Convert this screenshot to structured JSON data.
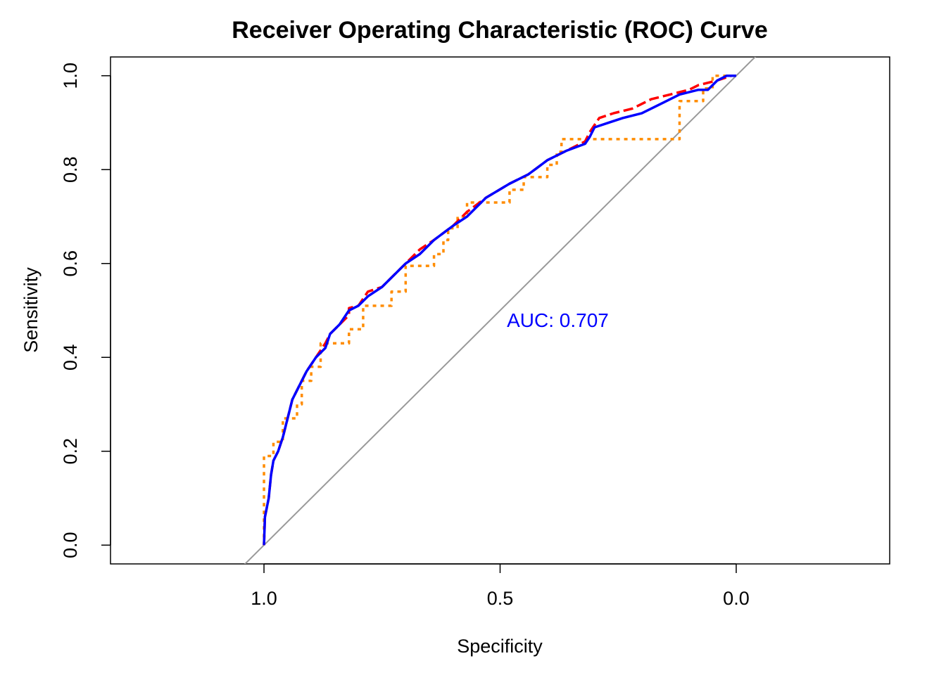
{
  "chart_data": {
    "type": "line",
    "title": "Receiver Operating Characteristic (ROC) Curve",
    "xlabel": "Specificity",
    "ylabel": "Sensitivity",
    "x_reversed": true,
    "xlim": [
      1.325,
      -0.325
    ],
    "ylim": [
      -0.04,
      1.04
    ],
    "xticks": [
      1.0,
      0.5,
      0.0
    ],
    "xtick_labels": [
      "1.0",
      "0.5",
      "0.0"
    ],
    "yticks": [
      0.0,
      0.2,
      0.4,
      0.6,
      0.8,
      1.0
    ],
    "ytick_labels": [
      "0.0",
      "0.2",
      "0.4",
      "0.6",
      "0.8",
      "1.0"
    ],
    "grid": false,
    "annotation": {
      "text": "AUC: 0.707",
      "x": 0.5,
      "y": 0.48,
      "color": "#0000ff"
    },
    "reference_line": {
      "color": "#999999",
      "points": [
        [
          1.0,
          0.0
        ],
        [
          0.0,
          1.0
        ]
      ]
    },
    "series": [
      {
        "color": "#ff8c00",
        "style": "dotted",
        "points": [
          [
            1.0,
            0.0
          ],
          [
            1.0,
            0.19
          ],
          [
            0.98,
            0.19
          ],
          [
            0.98,
            0.22
          ],
          [
            0.96,
            0.22
          ],
          [
            0.96,
            0.27
          ],
          [
            0.93,
            0.27
          ],
          [
            0.93,
            0.3
          ],
          [
            0.92,
            0.3
          ],
          [
            0.92,
            0.35
          ],
          [
            0.9,
            0.35
          ],
          [
            0.9,
            0.38
          ],
          [
            0.88,
            0.38
          ],
          [
            0.88,
            0.43
          ],
          [
            0.82,
            0.43
          ],
          [
            0.82,
            0.46
          ],
          [
            0.79,
            0.46
          ],
          [
            0.79,
            0.51
          ],
          [
            0.73,
            0.51
          ],
          [
            0.73,
            0.54
          ],
          [
            0.7,
            0.54
          ],
          [
            0.7,
            0.595
          ],
          [
            0.64,
            0.595
          ],
          [
            0.64,
            0.62
          ],
          [
            0.62,
            0.62
          ],
          [
            0.62,
            0.65
          ],
          [
            0.61,
            0.65
          ],
          [
            0.61,
            0.675
          ],
          [
            0.59,
            0.675
          ],
          [
            0.59,
            0.7
          ],
          [
            0.57,
            0.7
          ],
          [
            0.57,
            0.73
          ],
          [
            0.48,
            0.73
          ],
          [
            0.48,
            0.757
          ],
          [
            0.45,
            0.757
          ],
          [
            0.45,
            0.784
          ],
          [
            0.4,
            0.784
          ],
          [
            0.4,
            0.81
          ],
          [
            0.38,
            0.81
          ],
          [
            0.38,
            0.838
          ],
          [
            0.37,
            0.838
          ],
          [
            0.37,
            0.865
          ],
          [
            0.12,
            0.865
          ],
          [
            0.12,
            0.892
          ],
          [
            0.12,
            0.919
          ],
          [
            0.12,
            0.946
          ],
          [
            0.07,
            0.946
          ],
          [
            0.07,
            0.973
          ],
          [
            0.05,
            0.973
          ],
          [
            0.05,
            1.0
          ],
          [
            0.0,
            1.0
          ]
        ]
      },
      {
        "color": "#ff0000",
        "style": "dashed",
        "points": [
          [
            1.0,
            0.0
          ],
          [
            0.998,
            0.06
          ],
          [
            0.99,
            0.1
          ],
          [
            0.985,
            0.15
          ],
          [
            0.98,
            0.18
          ],
          [
            0.97,
            0.2
          ],
          [
            0.96,
            0.23
          ],
          [
            0.95,
            0.27
          ],
          [
            0.94,
            0.31
          ],
          [
            0.925,
            0.34
          ],
          [
            0.91,
            0.37
          ],
          [
            0.89,
            0.4
          ],
          [
            0.87,
            0.43
          ],
          [
            0.86,
            0.45
          ],
          [
            0.84,
            0.47
          ],
          [
            0.82,
            0.49
          ],
          [
            0.82,
            0.505
          ],
          [
            0.8,
            0.51
          ],
          [
            0.78,
            0.54
          ],
          [
            0.75,
            0.55
          ],
          [
            0.72,
            0.58
          ],
          [
            0.7,
            0.6
          ],
          [
            0.67,
            0.63
          ],
          [
            0.64,
            0.65
          ],
          [
            0.6,
            0.68
          ],
          [
            0.57,
            0.71
          ],
          [
            0.53,
            0.74
          ],
          [
            0.48,
            0.77
          ],
          [
            0.44,
            0.79
          ],
          [
            0.4,
            0.82
          ],
          [
            0.36,
            0.84
          ],
          [
            0.32,
            0.86
          ],
          [
            0.31,
            0.88
          ],
          [
            0.29,
            0.91
          ],
          [
            0.26,
            0.92
          ],
          [
            0.22,
            0.93
          ],
          [
            0.18,
            0.95
          ],
          [
            0.14,
            0.96
          ],
          [
            0.1,
            0.97
          ],
          [
            0.08,
            0.98
          ],
          [
            0.04,
            0.99
          ],
          [
            0.01,
            1.0
          ],
          [
            0.0,
            1.0
          ]
        ]
      },
      {
        "color": "#0000ff",
        "style": "solid",
        "points": [
          [
            1.0,
            0.0
          ],
          [
            0.998,
            0.06
          ],
          [
            0.99,
            0.1
          ],
          [
            0.985,
            0.15
          ],
          [
            0.98,
            0.18
          ],
          [
            0.97,
            0.2
          ],
          [
            0.96,
            0.23
          ],
          [
            0.95,
            0.27
          ],
          [
            0.94,
            0.31
          ],
          [
            0.925,
            0.34
          ],
          [
            0.91,
            0.37
          ],
          [
            0.89,
            0.4
          ],
          [
            0.87,
            0.42
          ],
          [
            0.86,
            0.45
          ],
          [
            0.84,
            0.47
          ],
          [
            0.82,
            0.5
          ],
          [
            0.8,
            0.51
          ],
          [
            0.78,
            0.53
          ],
          [
            0.75,
            0.55
          ],
          [
            0.72,
            0.58
          ],
          [
            0.7,
            0.6
          ],
          [
            0.67,
            0.62
          ],
          [
            0.64,
            0.65
          ],
          [
            0.6,
            0.68
          ],
          [
            0.57,
            0.7
          ],
          [
            0.53,
            0.74
          ],
          [
            0.48,
            0.77
          ],
          [
            0.44,
            0.79
          ],
          [
            0.4,
            0.82
          ],
          [
            0.36,
            0.84
          ],
          [
            0.32,
            0.855
          ],
          [
            0.31,
            0.87
          ],
          [
            0.3,
            0.89
          ],
          [
            0.27,
            0.9
          ],
          [
            0.24,
            0.91
          ],
          [
            0.2,
            0.92
          ],
          [
            0.16,
            0.94
          ],
          [
            0.12,
            0.96
          ],
          [
            0.08,
            0.97
          ],
          [
            0.06,
            0.97
          ],
          [
            0.04,
            0.99
          ],
          [
            0.02,
            1.0
          ],
          [
            0.0,
            1.0
          ]
        ]
      }
    ]
  }
}
